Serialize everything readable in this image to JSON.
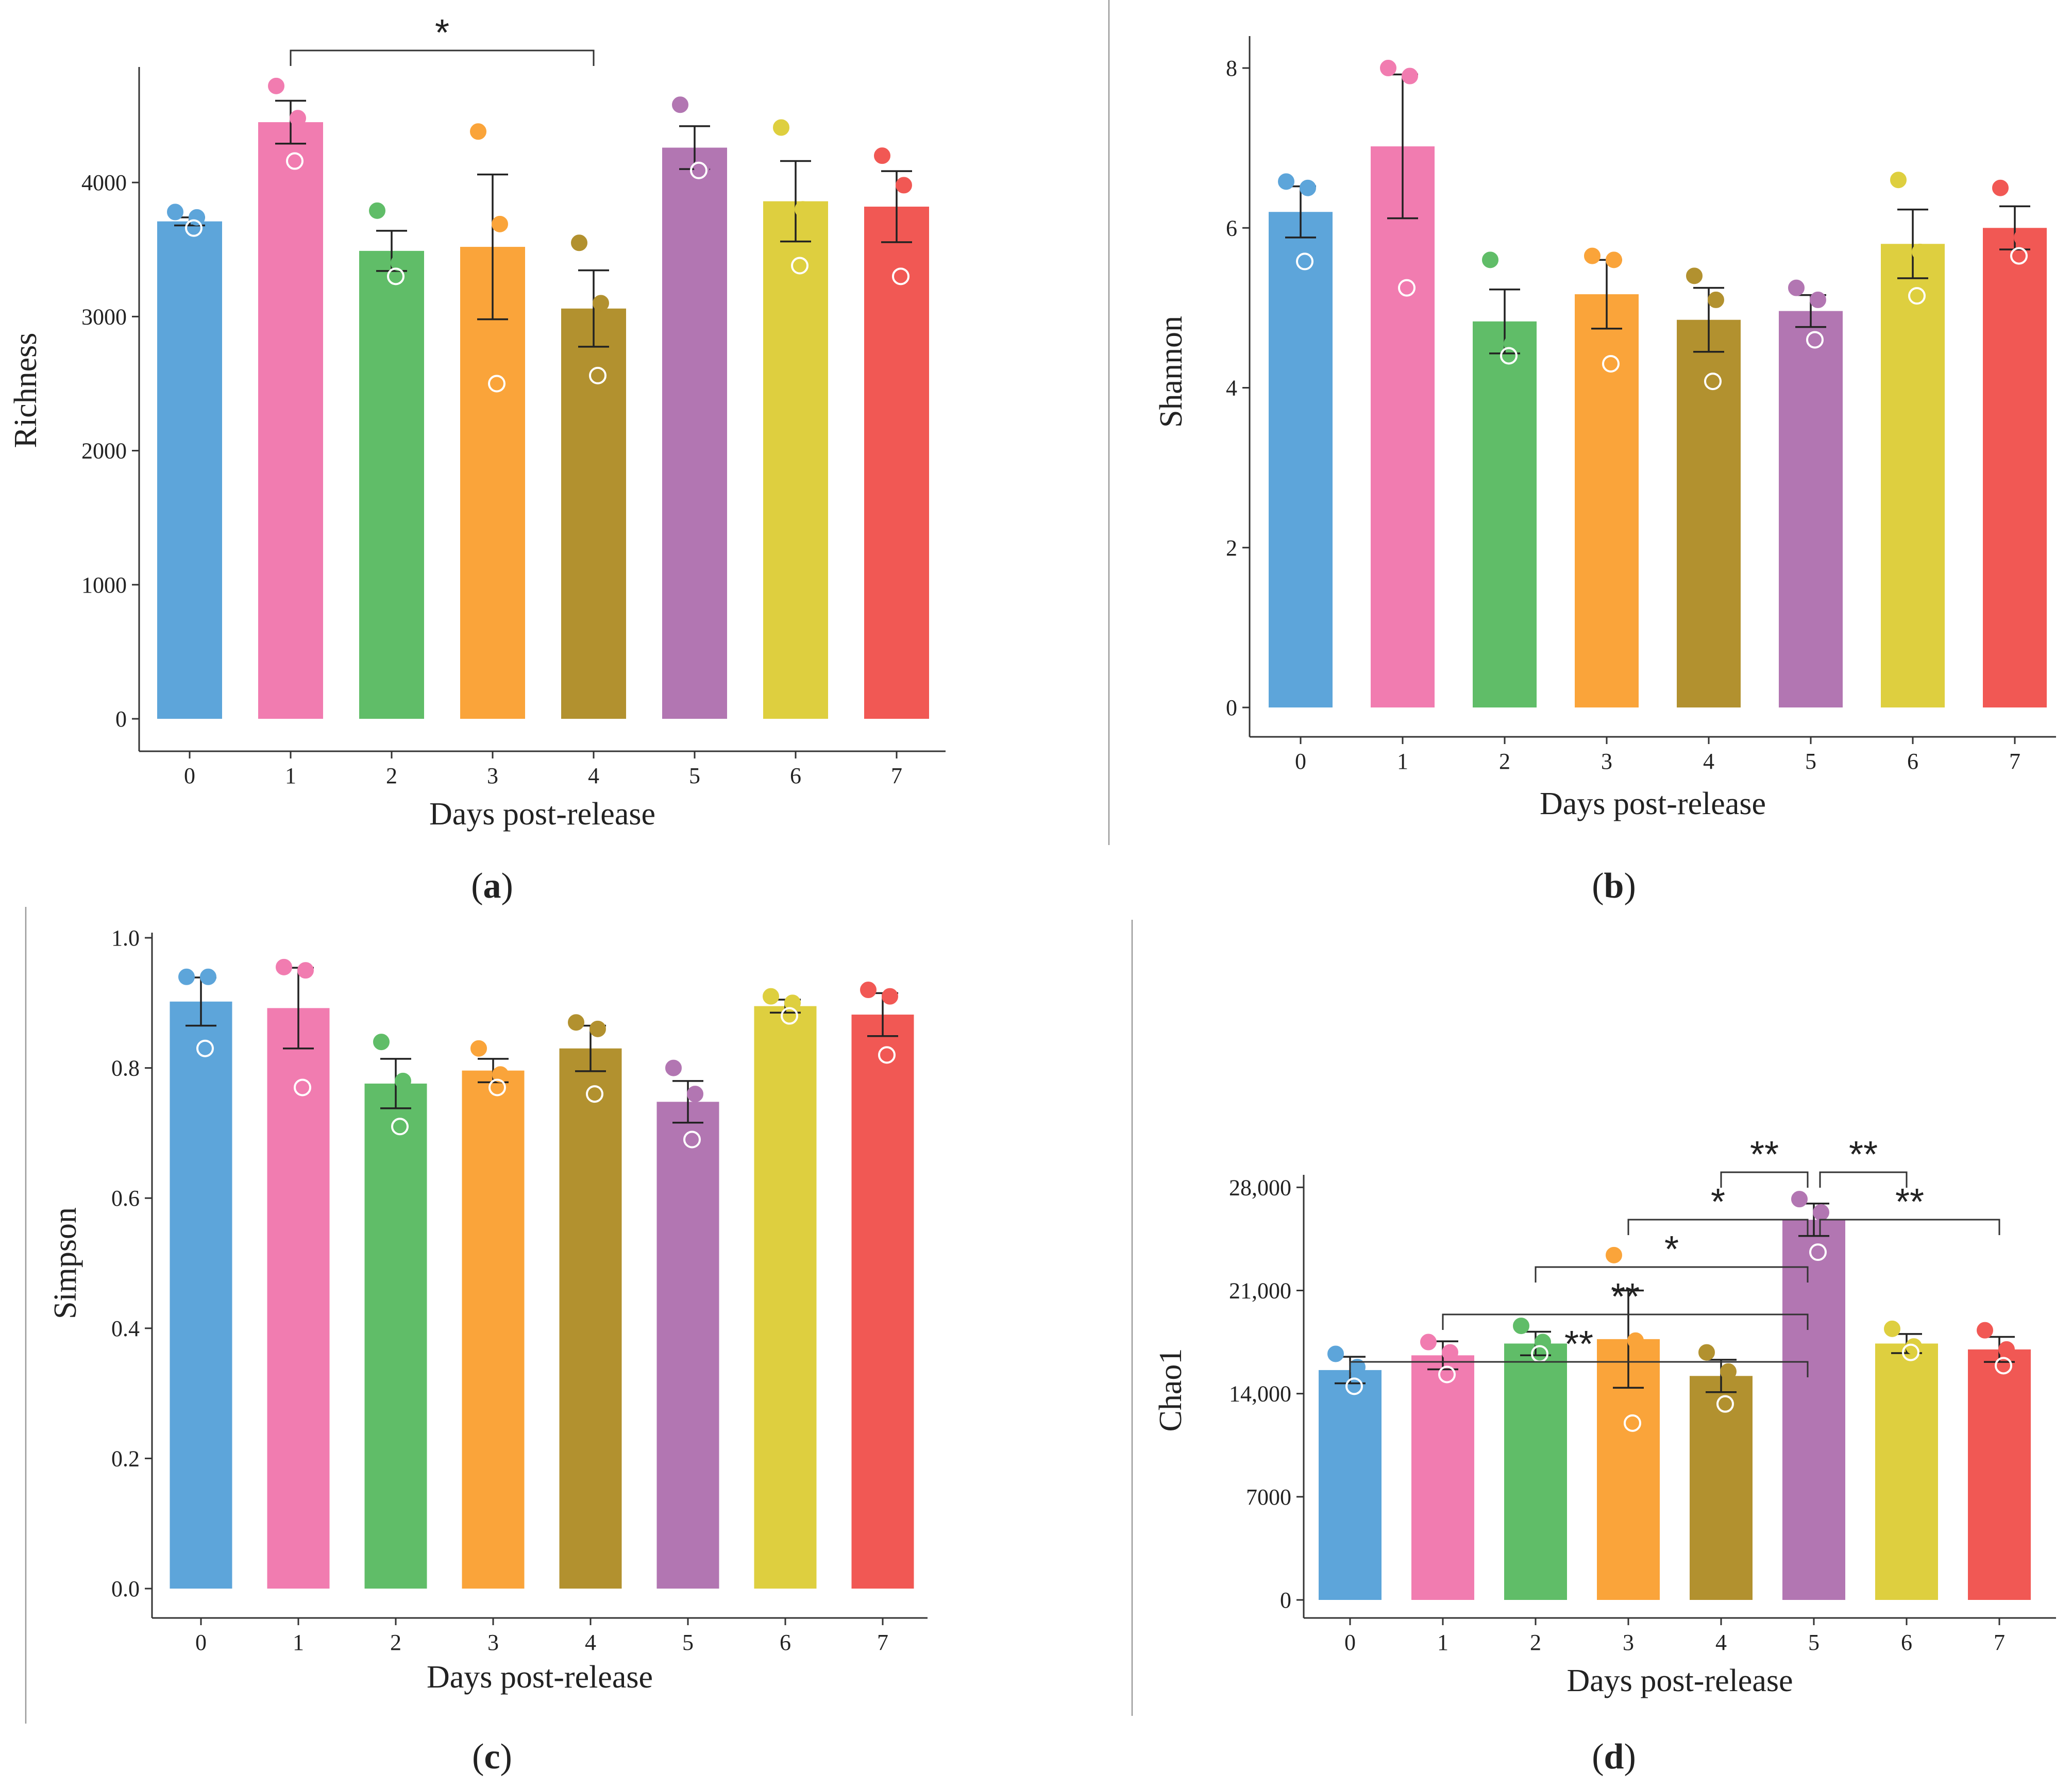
{
  "palette": [
    "#5DA5DA",
    "#F17CB0",
    "#60BD68",
    "#FAA43A",
    "#B2912F",
    "#B276B2",
    "#DECF3F",
    "#F15854"
  ],
  "chart_data": [
    {
      "id": "a",
      "type": "bar",
      "panel_label": "(a)",
      "letter": "a",
      "xlabel": "Days post-release",
      "ylabel": "Richness",
      "categories": [
        "0",
        "1",
        "2",
        "3",
        "4",
        "5",
        "6",
        "7"
      ],
      "values": [
        3710,
        4450,
        3490,
        3520,
        3060,
        4260,
        3860,
        3820
      ],
      "errors": [
        30,
        160,
        150,
        540,
        285,
        160,
        300,
        265
      ],
      "points": [
        [
          3780,
          3740,
          3660
        ],
        [
          4720,
          4480,
          4160
        ],
        [
          3790,
          3400,
          3300
        ],
        [
          4380,
          3690,
          2500
        ],
        [
          3550,
          3100,
          2560
        ],
        [
          4580,
          4120,
          4090
        ],
        [
          4410,
          3800,
          3380
        ],
        [
          4200,
          3980,
          3300
        ]
      ],
      "ylim": [
        0,
        4900
      ],
      "yticks": [
        0,
        1000,
        2000,
        3000,
        4000
      ],
      "ytick_labels": [
        "0",
        "1000",
        "2000",
        "3000",
        "4000"
      ],
      "significance": [
        {
          "from": 1,
          "to": 4,
          "label": "*"
        }
      ]
    },
    {
      "id": "b",
      "type": "bar",
      "panel_label": "(b)",
      "letter": "b",
      "xlabel": "Days post-release",
      "ylabel": "Shannon",
      "categories": [
        "0",
        "1",
        "2",
        "3",
        "4",
        "5",
        "6",
        "7"
      ],
      "values": [
        6.2,
        7.02,
        4.83,
        5.17,
        4.85,
        4.96,
        5.8,
        6.0
      ],
      "errors": [
        0.32,
        0.9,
        0.4,
        0.43,
        0.4,
        0.2,
        0.43,
        0.27
      ],
      "points": [
        [
          6.58,
          6.5,
          5.58
        ],
        [
          8.0,
          7.9,
          5.25
        ],
        [
          5.6,
          4.55,
          4.4
        ],
        [
          5.65,
          5.6,
          4.3
        ],
        [
          5.4,
          5.1,
          4.08
        ],
        [
          5.25,
          5.1,
          4.6
        ],
        [
          6.6,
          5.7,
          5.15
        ],
        [
          6.5,
          5.88,
          5.65
        ]
      ],
      "ylim": [
        0,
        8.4
      ],
      "yticks": [
        0,
        2,
        4,
        6,
        8
      ],
      "ytick_labels": [
        "0",
        "2",
        "4",
        "6",
        "8"
      ],
      "significance": []
    },
    {
      "id": "c",
      "type": "bar",
      "panel_label": "(c)",
      "letter": "c",
      "xlabel": "Days post-release",
      "ylabel": "Simpson",
      "categories": [
        "0",
        "1",
        "2",
        "3",
        "4",
        "5",
        "6",
        "7"
      ],
      "values": [
        0.902,
        0.892,
        0.776,
        0.796,
        0.83,
        0.748,
        0.895,
        0.882
      ],
      "errors": [
        0.037,
        0.062,
        0.038,
        0.018,
        0.035,
        0.032,
        0.01,
        0.033
      ],
      "points": [
        [
          0.94,
          0.94,
          0.83
        ],
        [
          0.955,
          0.95,
          0.77
        ],
        [
          0.84,
          0.78,
          0.71
        ],
        [
          0.83,
          0.79,
          0.77
        ],
        [
          0.87,
          0.86,
          0.76
        ],
        [
          0.8,
          0.76,
          0.69
        ],
        [
          0.91,
          0.9,
          0.88
        ],
        [
          0.92,
          0.91,
          0.82
        ]
      ],
      "ylim": [
        0,
        1.0
      ],
      "yticks": [
        0,
        0.2,
        0.4,
        0.6,
        0.8,
        1.0
      ],
      "ytick_labels": [
        "0.0",
        "0.2",
        "0.4",
        "0.6",
        "0.8",
        "1.0"
      ],
      "significance": []
    },
    {
      "id": "d",
      "type": "bar",
      "panel_label": "(d)",
      "letter": "d",
      "xlabel": "Days post-release",
      "ylabel": "Chao1",
      "categories": [
        "0",
        "1",
        "2",
        "3",
        "4",
        "5",
        "6",
        "7"
      ],
      "values": [
        15600,
        16600,
        17400,
        17700,
        15200,
        25800,
        17400,
        17000
      ],
      "errors": [
        900,
        950,
        800,
        3300,
        1100,
        1100,
        650,
        850
      ],
      "points": [
        [
          16700,
          15800,
          14500
        ],
        [
          17500,
          16800,
          15300
        ],
        [
          18600,
          17500,
          16700
        ],
        [
          23400,
          17600,
          12000
        ],
        [
          16800,
          15500,
          13300
        ],
        [
          27200,
          26300,
          23600
        ],
        [
          18400,
          17200,
          16800
        ],
        [
          18300,
          17000,
          15900
        ]
      ],
      "ylim": [
        0,
        28500
      ],
      "yticks": [
        0,
        7000,
        14000,
        21000,
        28000
      ],
      "ytick_labels": [
        "0",
        "7000",
        "14,000",
        "21,000",
        "28,000"
      ],
      "significance": [
        {
          "from": 0,
          "to": 5,
          "label": "**"
        },
        {
          "from": 1,
          "to": 5,
          "label": "**"
        },
        {
          "from": 2,
          "to": 5,
          "label": "*"
        },
        {
          "from": 3,
          "to": 5,
          "label": "*"
        },
        {
          "from": 4,
          "to": 5,
          "label": "**"
        },
        {
          "from": 5,
          "to": 7,
          "label": "**"
        },
        {
          "from": 5,
          "to": 6,
          "label": "**"
        }
      ]
    }
  ]
}
